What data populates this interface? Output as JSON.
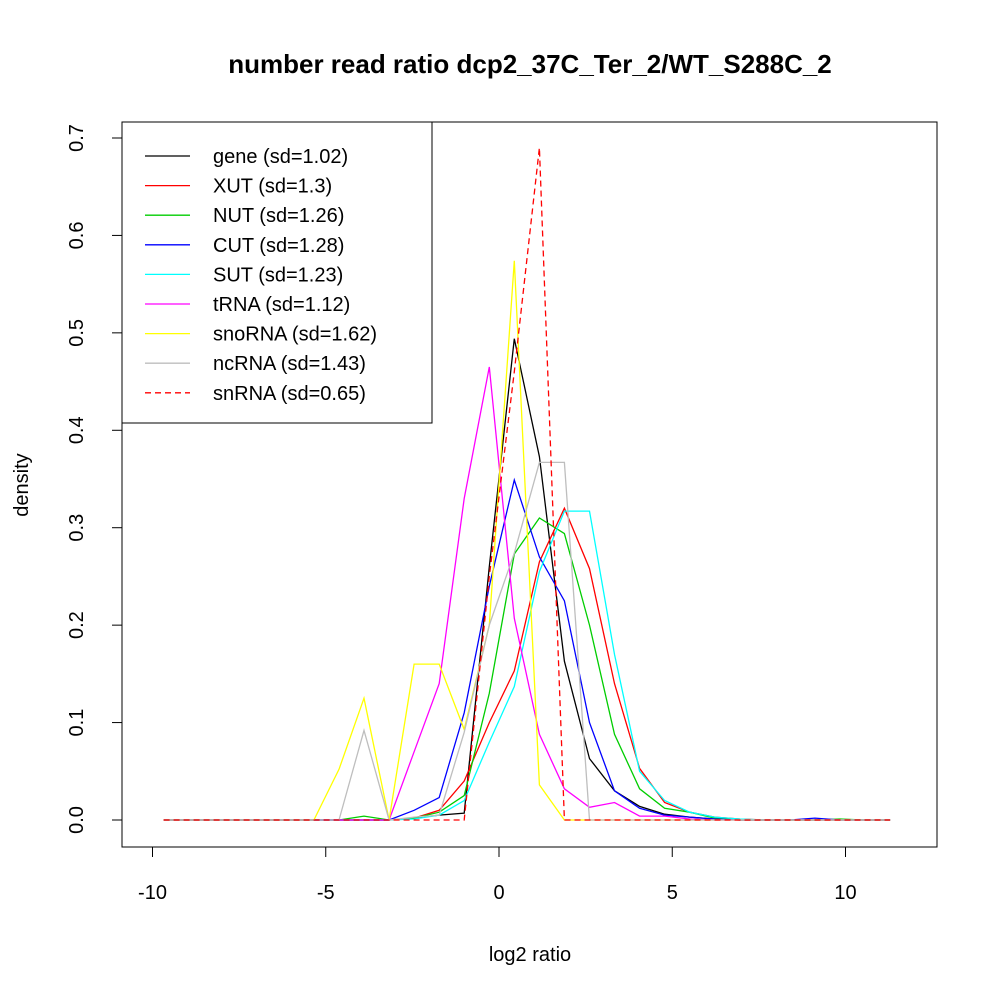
{
  "chart_data": {
    "type": "line",
    "title": "number read ratio dcp2_37C_Ter_2/WT_S288C_2",
    "xlabel": "log2 ratio",
    "ylabel": "density",
    "xlim": [
      -10.5,
      12.5
    ],
    "ylim": [
      -0.028,
      0.717
    ],
    "xticks": [
      -10,
      -5,
      0,
      5,
      10
    ],
    "xtick_labels": [
      "-10",
      "-5",
      "0",
      "5",
      "10"
    ],
    "yticks": [
      0.0,
      0.1,
      0.2,
      0.3,
      0.4,
      0.5,
      0.6,
      0.7
    ],
    "ytick_labels": [
      "0.0",
      "0.1",
      "0.2",
      "0.3",
      "0.4",
      "0.5",
      "0.6",
      "0.7"
    ],
    "grid": false,
    "legend_position": "top-left",
    "x_start": -9.68,
    "x_step": 0.723,
    "series": [
      {
        "name": "gene (sd=1.02)",
        "color": "#000000",
        "dash": false,
        "values": [
          0,
          0,
          0,
          0,
          0,
          0,
          0,
          0,
          0,
          0,
          0.002,
          0.005,
          0.007,
          0.26,
          0.494,
          0.373,
          0.163,
          0.063,
          0.03,
          0.014,
          0.006,
          0.003,
          0.001,
          0,
          0,
          0,
          0,
          0,
          0,
          0
        ]
      },
      {
        "name": "XUT (sd=1.3)",
        "color": "#ff0000",
        "dash": false,
        "values": [
          0,
          0,
          0,
          0,
          0,
          0,
          0,
          0,
          0,
          0,
          0.002,
          0.01,
          0.04,
          0.1,
          0.153,
          0.265,
          0.32,
          0.258,
          0.14,
          0.053,
          0.018,
          0.008,
          0.003,
          0.001,
          0,
          0,
          0,
          0,
          0,
          0
        ]
      },
      {
        "name": "NUT (sd=1.26)",
        "color": "#00cd00",
        "dash": false,
        "values": [
          0,
          0,
          0,
          0,
          0,
          0,
          0,
          0,
          0.004,
          0,
          0.002,
          0.008,
          0.025,
          0.13,
          0.273,
          0.31,
          0.294,
          0.2,
          0.088,
          0.032,
          0.012,
          0.008,
          0.002,
          0,
          0,
          0,
          0,
          0.001,
          0,
          0
        ]
      },
      {
        "name": "CUT (sd=1.28)",
        "color": "#0000ff",
        "dash": false,
        "values": [
          0,
          0,
          0,
          0,
          0,
          0,
          0,
          0,
          0,
          0,
          0.01,
          0.023,
          0.11,
          0.24,
          0.349,
          0.27,
          0.225,
          0.1,
          0.03,
          0.012,
          0.005,
          0.003,
          0.001,
          0,
          0,
          0,
          0.002,
          0,
          0,
          0
        ]
      },
      {
        "name": "SUT (sd=1.23)",
        "color": "#00ffff",
        "dash": false,
        "values": [
          0,
          0,
          0,
          0,
          0,
          0,
          0,
          0,
          0,
          0,
          0.001,
          0.005,
          0.02,
          0.08,
          0.137,
          0.255,
          0.317,
          0.317,
          0.17,
          0.05,
          0.02,
          0.008,
          0.003,
          0.001,
          0,
          0,
          0,
          0,
          0,
          0
        ]
      },
      {
        "name": "tRNA (sd=1.12)",
        "color": "#ff00ff",
        "dash": false,
        "values": [
          0,
          0,
          0,
          0,
          0,
          0,
          0,
          0,
          0,
          0,
          0.07,
          0.14,
          0.33,
          0.465,
          0.207,
          0.088,
          0.032,
          0.013,
          0.018,
          0.004,
          0.004,
          0.001,
          0,
          0,
          0,
          0,
          0,
          0,
          0,
          0
        ]
      },
      {
        "name": "snoRNA (sd=1.62)",
        "color": "#ffff00",
        "dash": false,
        "values": [
          0,
          0,
          0,
          0,
          0,
          0,
          0,
          0.052,
          0.125,
          0,
          0.16,
          0.16,
          0.093,
          0.2,
          0.574,
          0.036,
          0,
          0,
          0,
          0,
          0,
          0,
          0,
          0,
          0,
          0,
          0,
          0,
          0,
          0
        ]
      },
      {
        "name": "ncRNA (sd=1.43)",
        "color": "#bebebe",
        "dash": false,
        "values": [
          0,
          0,
          0,
          0,
          0,
          0,
          0,
          0,
          0.092,
          0,
          0.003,
          0.005,
          0.09,
          0.2,
          0.274,
          0.367,
          0.367,
          0,
          0,
          0,
          0,
          0,
          0,
          0,
          0,
          0,
          0,
          0,
          0,
          0
        ]
      },
      {
        "name": "snRNA (sd=0.65)",
        "color": "#ff0000",
        "dash": true,
        "values": [
          0,
          0,
          0,
          0,
          0,
          0,
          0,
          0,
          0,
          0,
          0,
          0,
          0,
          0.25,
          0.46,
          0.69,
          0,
          0,
          0,
          0,
          0,
          0,
          0,
          0,
          0,
          0,
          0,
          0,
          0,
          0
        ]
      }
    ]
  }
}
